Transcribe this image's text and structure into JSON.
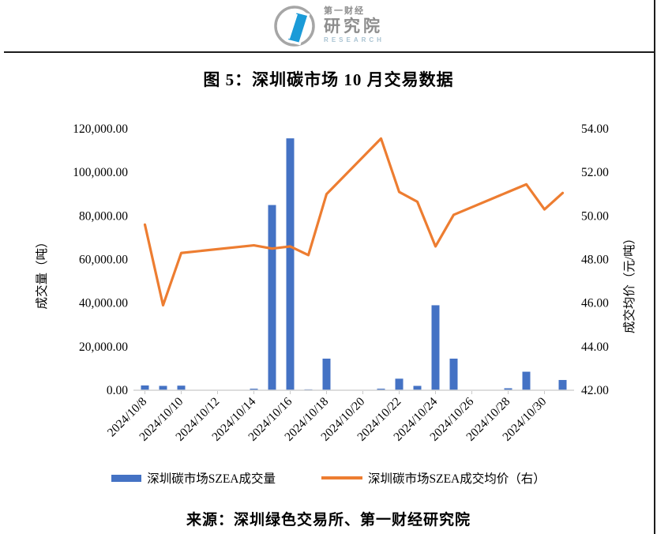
{
  "page": {
    "title": "图 5：深圳碳市场 10 月交易数据",
    "source": "来源：深圳绿色交易所、第一财经研究院"
  },
  "logo": {
    "line1": "第一财经",
    "line2": "研究院",
    "line3": "RESEARCH",
    "circle_color": "#a6a6a6",
    "mark_color": "#1b9bd8"
  },
  "legend": [
    {
      "label": "深圳碳市场SZEA成交量",
      "type": "bar",
      "color": "#4472C4"
    },
    {
      "label": "深圳碳市场SZEA成交均价（右）",
      "type": "line",
      "color": "#ED7D31"
    }
  ],
  "chart_data": {
    "type": "bar+line combo, dual axis",
    "x_axis": {
      "start_date": "2024/10/8",
      "end_date": "2024/10/31",
      "tick_labels": [
        "2024/10/8",
        "2024/10/10",
        "2024/10/12",
        "2024/10/14",
        "2024/10/16",
        "2024/10/18",
        "2024/10/20",
        "2024/10/22",
        "2024/10/24",
        "2024/10/26",
        "2024/10/28",
        "2024/10/30"
      ]
    },
    "left_axis": {
      "title": "成交量（吨）",
      "min": 0,
      "max": 120000,
      "step": 20000,
      "tick_labels": [
        "0.00",
        "20,000.00",
        "40,000.00",
        "60,000.00",
        "80,000.00",
        "100,000.00",
        "120,000.00"
      ]
    },
    "right_axis": {
      "title": "成交均价（元/吨）",
      "min": 42,
      "max": 54,
      "step": 2,
      "tick_labels": [
        "42.00",
        "44.00",
        "46.00",
        "48.00",
        "50.00",
        "52.00",
        "54.00"
      ]
    },
    "series": [
      {
        "name": "深圳碳市场SZEA成交量",
        "type": "bar",
        "axis": "left",
        "color": "#4472C4",
        "data": [
          [
            "2024/10/8",
            2200
          ],
          [
            "2024/10/9",
            2000
          ],
          [
            "2024/10/10",
            2100
          ],
          [
            "2024/10/14",
            700
          ],
          [
            "2024/10/15",
            85000
          ],
          [
            "2024/10/16",
            115600
          ],
          [
            "2024/10/17",
            400
          ],
          [
            "2024/10/18",
            14500
          ],
          [
            "2024/10/21",
            700
          ],
          [
            "2024/10/22",
            5300
          ],
          [
            "2024/10/23",
            2000
          ],
          [
            "2024/10/24",
            39000
          ],
          [
            "2024/10/25",
            14500
          ],
          [
            "2024/10/28",
            900
          ],
          [
            "2024/10/29",
            8500
          ],
          [
            "2024/10/30",
            0
          ],
          [
            "2024/10/31",
            4700
          ]
        ]
      },
      {
        "name": "深圳碳市场SZEA成交均价（右）",
        "type": "line",
        "axis": "right",
        "color": "#ED7D31",
        "data": [
          [
            "2024/10/8",
            49.6
          ],
          [
            "2024/10/9",
            45.9
          ],
          [
            "2024/10/10",
            48.3
          ],
          [
            "2024/10/14",
            48.65
          ],
          [
            "2024/10/15",
            48.5
          ],
          [
            "2024/10/16",
            48.6
          ],
          [
            "2024/10/17",
            48.2
          ],
          [
            "2024/10/18",
            51.0
          ],
          [
            "2024/10/21",
            53.55
          ],
          [
            "2024/10/22",
            51.1
          ],
          [
            "2024/10/23",
            50.65
          ],
          [
            "2024/10/24",
            48.6
          ],
          [
            "2024/10/25",
            50.05
          ],
          [
            "2024/10/28",
            51.1
          ],
          [
            "2024/10/29",
            51.45
          ],
          [
            "2024/10/30",
            50.3
          ],
          [
            "2024/10/31",
            51.05
          ]
        ]
      }
    ]
  }
}
